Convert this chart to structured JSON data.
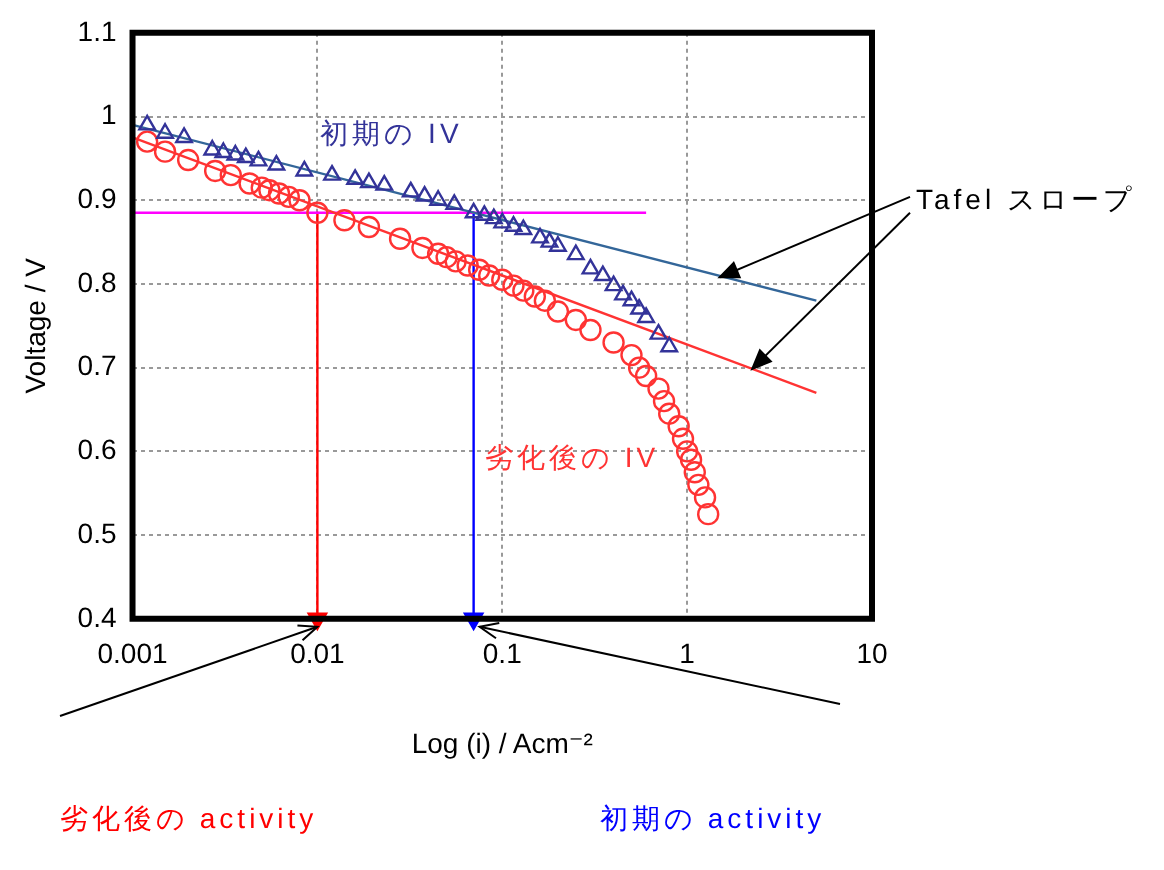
{
  "chart_data": {
    "type": "scatter",
    "xlabel": "Log (i) / Acm⁻²",
    "ylabel": "Voltage / V",
    "log": "x",
    "grid": true,
    "legend": false,
    "xlim": [
      0.001,
      10
    ],
    "xticks": [
      0.001,
      0.01,
      0.1,
      1,
      10
    ],
    "ylim": [
      0.4,
      1.1
    ],
    "yticks": [
      0.4,
      0.5,
      0.6,
      0.7,
      0.8,
      0.9,
      1,
      1.1
    ],
    "series": [
      {
        "name": "初期の IV",
        "type": "scatter",
        "marker": "triangle",
        "color": "#333399",
        "x": [
          0.0012,
          0.0015,
          0.0019,
          0.0027,
          0.0031,
          0.0036,
          0.0041,
          0.0048,
          0.006,
          0.0085,
          0.012,
          0.016,
          0.019,
          0.023,
          0.032,
          0.038,
          0.045,
          0.055,
          0.07,
          0.08,
          0.09,
          0.1,
          0.115,
          0.13,
          0.16,
          0.18,
          0.2,
          0.25,
          0.3,
          0.35,
          0.4,
          0.45,
          0.5,
          0.55,
          0.6,
          0.7,
          0.8
        ],
        "values": [
          0.99,
          0.98,
          0.975,
          0.96,
          0.957,
          0.954,
          0.951,
          0.947,
          0.942,
          0.935,
          0.93,
          0.925,
          0.921,
          0.918,
          0.91,
          0.905,
          0.9,
          0.895,
          0.885,
          0.882,
          0.878,
          0.873,
          0.869,
          0.865,
          0.855,
          0.85,
          0.845,
          0.835,
          0.818,
          0.81,
          0.798,
          0.787,
          0.78,
          0.77,
          0.76,
          0.74,
          0.725
        ]
      },
      {
        "name": "劣化後の IV",
        "type": "scatter",
        "marker": "circle",
        "color": "#ff3333",
        "x": [
          0.0012,
          0.0015,
          0.002,
          0.0028,
          0.0034,
          0.0043,
          0.005,
          0.0055,
          0.0062,
          0.007,
          0.008,
          0.01,
          0.014,
          0.019,
          0.028,
          0.037,
          0.045,
          0.05,
          0.056,
          0.065,
          0.075,
          0.085,
          0.1,
          0.115,
          0.13,
          0.15,
          0.17,
          0.2,
          0.25,
          0.3,
          0.4,
          0.5,
          0.55,
          0.6,
          0.7,
          0.75,
          0.8,
          0.9,
          0.95,
          1.0,
          1.05,
          1.1,
          1.15,
          1.25,
          1.3
        ],
        "values": [
          0.97,
          0.958,
          0.948,
          0.935,
          0.93,
          0.92,
          0.915,
          0.912,
          0.908,
          0.904,
          0.9,
          0.885,
          0.876,
          0.868,
          0.854,
          0.843,
          0.836,
          0.832,
          0.827,
          0.822,
          0.817,
          0.81,
          0.805,
          0.798,
          0.792,
          0.785,
          0.78,
          0.767,
          0.757,
          0.745,
          0.73,
          0.715,
          0.7,
          0.69,
          0.675,
          0.66,
          0.645,
          0.63,
          0.615,
          0.6,
          0.59,
          0.575,
          0.56,
          0.545,
          0.525
        ]
      },
      {
        "type": "line",
        "color": "#336699",
        "x": [
          0.001,
          5
        ],
        "values": [
          0.99,
          0.78
        ]
      },
      {
        "type": "line",
        "color": "#ff3333",
        "x": [
          0.001,
          5
        ],
        "values": [
          0.975,
          0.67
        ]
      },
      {
        "type": "line",
        "color": "#ff00ff",
        "x": [
          0.001,
          0.6
        ],
        "values": [
          0.885,
          0.885
        ]
      },
      {
        "type": "line",
        "color": "#ff0000",
        "x": [
          0.01,
          0.01
        ],
        "values": [
          0.885,
          0.4
        ]
      },
      {
        "type": "line",
        "color": "#0000ff",
        "x": [
          0.07,
          0.07
        ],
        "values": [
          0.885,
          0.4
        ]
      }
    ],
    "annotations": [
      {
        "text": "Tafel スロープ",
        "x": 1.5,
        "y": 0.808
      },
      "劣化後の activity",
      "初期の activity"
    ]
  }
}
